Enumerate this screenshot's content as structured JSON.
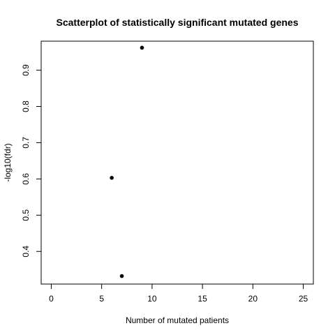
{
  "chart_data": {
    "type": "scatter",
    "title": "Scatterplot of statistically significant mutated genes",
    "xlabel": "Number of mutated patients",
    "ylabel": "-log10(fdr)",
    "xlim": [
      -1,
      26
    ],
    "ylim": [
      0.31,
      0.98
    ],
    "x_ticks": [
      0,
      5,
      10,
      15,
      20,
      25
    ],
    "y_ticks": [
      0.4,
      0.5,
      0.6,
      0.7,
      0.8,
      0.9
    ],
    "grid": false,
    "points": [
      {
        "x": 9,
        "y": 0.962
      },
      {
        "x": 6,
        "y": 0.603
      },
      {
        "x": 7,
        "y": 0.332
      }
    ]
  }
}
